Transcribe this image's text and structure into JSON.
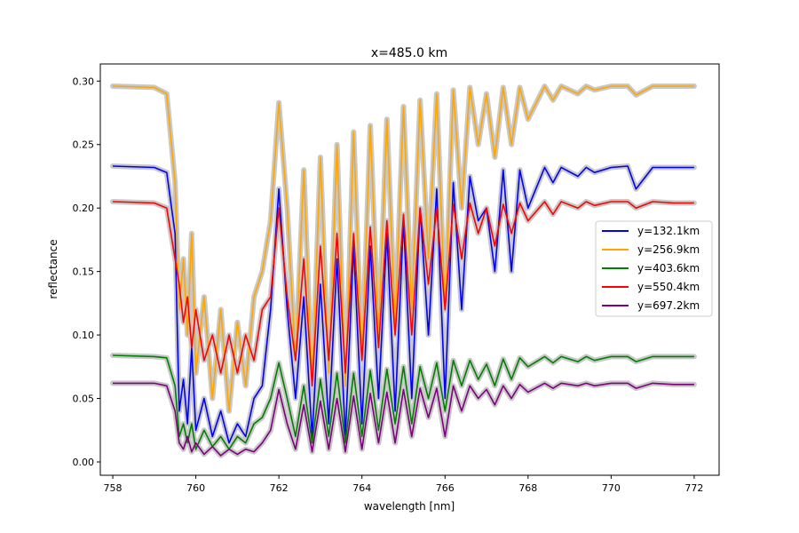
{
  "chart_data": {
    "type": "line",
    "title": "x=485.0 km",
    "xlabel": "wavelength [nm]",
    "ylabel": "reflectance",
    "xlim": [
      757.7,
      772.6
    ],
    "ylim": [
      -0.0105,
      0.3135
    ],
    "xticks": [
      758,
      760,
      762,
      764,
      766,
      768,
      770,
      772
    ],
    "yticks": [
      0.0,
      0.05,
      0.1,
      0.15,
      0.2,
      0.25,
      0.3
    ],
    "ytick_labels": [
      "0.00",
      "0.05",
      "0.10",
      "0.15",
      "0.20",
      "0.25",
      "0.30"
    ],
    "grid": false,
    "legend_position": "center-right",
    "uncertainty_band_color": "#c8c8c8",
    "series": [
      {
        "name": "y=132.1km",
        "color": "#0000ff",
        "x": [
          758.0,
          759.0,
          759.3,
          759.5,
          759.6,
          759.7,
          759.8,
          759.9,
          760.0,
          760.2,
          760.4,
          760.6,
          760.8,
          761.0,
          761.2,
          761.4,
          761.6,
          761.8,
          762.0,
          762.2,
          762.4,
          762.6,
          762.8,
          763.0,
          763.2,
          763.4,
          763.6,
          763.8,
          764.0,
          764.2,
          764.4,
          764.6,
          764.8,
          765.0,
          765.2,
          765.4,
          765.6,
          765.8,
          766.0,
          766.2,
          766.4,
          766.6,
          766.8,
          767.0,
          767.2,
          767.4,
          767.6,
          767.8,
          768.0,
          768.4,
          768.6,
          768.8,
          769.2,
          769.4,
          769.6,
          770.0,
          770.4,
          770.6,
          771.0,
          771.5,
          772.0
        ],
        "y": [
          0.233,
          0.232,
          0.228,
          0.18,
          0.04,
          0.065,
          0.03,
          0.09,
          0.025,
          0.05,
          0.02,
          0.04,
          0.015,
          0.03,
          0.02,
          0.05,
          0.06,
          0.12,
          0.215,
          0.12,
          0.05,
          0.13,
          0.02,
          0.14,
          0.03,
          0.16,
          0.02,
          0.17,
          0.03,
          0.17,
          0.05,
          0.18,
          0.04,
          0.19,
          0.05,
          0.2,
          0.1,
          0.215,
          0.05,
          0.22,
          0.12,
          0.225,
          0.19,
          0.2,
          0.15,
          0.23,
          0.15,
          0.23,
          0.2,
          0.232,
          0.22,
          0.232,
          0.225,
          0.232,
          0.228,
          0.232,
          0.233,
          0.215,
          0.232,
          0.232,
          0.232
        ]
      },
      {
        "name": "y=256.9km",
        "color": "#ffa500",
        "x": [
          758.0,
          759.0,
          759.3,
          759.5,
          759.6,
          759.7,
          759.8,
          759.9,
          760.0,
          760.2,
          760.4,
          760.6,
          760.8,
          761.0,
          761.2,
          761.4,
          761.6,
          761.8,
          762.0,
          762.2,
          762.4,
          762.6,
          762.8,
          763.0,
          763.2,
          763.4,
          763.6,
          763.8,
          764.0,
          764.2,
          764.4,
          764.6,
          764.8,
          765.0,
          765.2,
          765.4,
          765.6,
          765.8,
          766.0,
          766.2,
          766.4,
          766.6,
          766.8,
          767.0,
          767.2,
          767.4,
          767.6,
          767.8,
          768.0,
          768.4,
          768.6,
          768.8,
          769.2,
          769.4,
          769.6,
          770.0,
          770.4,
          770.6,
          771.0,
          771.5,
          772.0
        ],
        "y": [
          0.296,
          0.295,
          0.29,
          0.22,
          0.12,
          0.16,
          0.1,
          0.18,
          0.07,
          0.13,
          0.05,
          0.12,
          0.04,
          0.11,
          0.06,
          0.13,
          0.15,
          0.19,
          0.283,
          0.2,
          0.08,
          0.23,
          0.06,
          0.24,
          0.07,
          0.25,
          0.06,
          0.26,
          0.08,
          0.265,
          0.1,
          0.27,
          0.11,
          0.28,
          0.12,
          0.285,
          0.16,
          0.29,
          0.12,
          0.293,
          0.2,
          0.295,
          0.25,
          0.29,
          0.24,
          0.295,
          0.25,
          0.295,
          0.27,
          0.296,
          0.285,
          0.296,
          0.29,
          0.296,
          0.293,
          0.296,
          0.296,
          0.289,
          0.296,
          0.296,
          0.296
        ]
      },
      {
        "name": "y=403.6km",
        "color": "#008000",
        "x": [
          758.0,
          759.0,
          759.3,
          759.5,
          759.6,
          759.7,
          759.8,
          759.9,
          760.0,
          760.2,
          760.4,
          760.6,
          760.8,
          761.0,
          761.2,
          761.4,
          761.6,
          761.8,
          762.0,
          762.2,
          762.4,
          762.6,
          762.8,
          763.0,
          763.2,
          763.4,
          763.6,
          763.8,
          764.0,
          764.2,
          764.4,
          764.6,
          764.8,
          765.0,
          765.2,
          765.4,
          765.6,
          765.8,
          766.0,
          766.2,
          766.4,
          766.6,
          766.8,
          767.0,
          767.2,
          767.4,
          767.6,
          767.8,
          768.0,
          768.4,
          768.6,
          768.8,
          769.2,
          769.4,
          769.6,
          770.0,
          770.4,
          770.6,
          771.0,
          771.5,
          772.0
        ],
        "y": [
          0.084,
          0.083,
          0.082,
          0.06,
          0.02,
          0.03,
          0.015,
          0.03,
          0.01,
          0.025,
          0.012,
          0.02,
          0.01,
          0.02,
          0.015,
          0.03,
          0.035,
          0.05,
          0.078,
          0.05,
          0.02,
          0.06,
          0.015,
          0.065,
          0.02,
          0.07,
          0.015,
          0.07,
          0.02,
          0.072,
          0.025,
          0.073,
          0.03,
          0.075,
          0.03,
          0.075,
          0.05,
          0.078,
          0.04,
          0.08,
          0.06,
          0.08,
          0.065,
          0.077,
          0.06,
          0.081,
          0.065,
          0.082,
          0.075,
          0.083,
          0.078,
          0.083,
          0.079,
          0.083,
          0.08,
          0.083,
          0.083,
          0.079,
          0.083,
          0.083,
          0.083
        ]
      },
      {
        "name": "y=550.4km",
        "color": "#ff0000",
        "x": [
          758.0,
          759.0,
          759.3,
          759.5,
          759.6,
          759.7,
          759.8,
          759.9,
          760.0,
          760.2,
          760.4,
          760.6,
          760.8,
          761.0,
          761.2,
          761.4,
          761.6,
          761.8,
          762.0,
          762.2,
          762.4,
          762.6,
          762.8,
          763.0,
          763.2,
          763.4,
          763.6,
          763.8,
          764.0,
          764.2,
          764.4,
          764.6,
          764.8,
          765.0,
          765.2,
          765.4,
          765.6,
          765.8,
          766.0,
          766.2,
          766.4,
          766.6,
          766.8,
          767.0,
          767.2,
          767.4,
          767.6,
          767.8,
          768.0,
          768.4,
          768.6,
          768.8,
          769.2,
          769.4,
          769.6,
          770.0,
          770.4,
          770.6,
          771.0,
          771.5,
          772.0
        ],
        "y": [
          0.205,
          0.204,
          0.2,
          0.16,
          0.14,
          0.11,
          0.13,
          0.09,
          0.12,
          0.08,
          0.1,
          0.07,
          0.1,
          0.07,
          0.1,
          0.08,
          0.12,
          0.13,
          0.2,
          0.13,
          0.08,
          0.16,
          0.06,
          0.17,
          0.08,
          0.18,
          0.07,
          0.18,
          0.08,
          0.185,
          0.09,
          0.19,
          0.1,
          0.195,
          0.1,
          0.2,
          0.14,
          0.2,
          0.12,
          0.203,
          0.16,
          0.204,
          0.18,
          0.2,
          0.17,
          0.203,
          0.18,
          0.204,
          0.19,
          0.205,
          0.195,
          0.205,
          0.2,
          0.205,
          0.202,
          0.205,
          0.205,
          0.2,
          0.205,
          0.204,
          0.204
        ]
      },
      {
        "name": "y=697.2km",
        "color": "#800080",
        "x": [
          758.0,
          759.0,
          759.3,
          759.5,
          759.6,
          759.7,
          759.8,
          759.9,
          760.0,
          760.2,
          760.4,
          760.6,
          760.8,
          761.0,
          761.2,
          761.4,
          761.6,
          761.8,
          762.0,
          762.2,
          762.4,
          762.6,
          762.8,
          763.0,
          763.2,
          763.4,
          763.6,
          763.8,
          764.0,
          764.2,
          764.4,
          764.6,
          764.8,
          765.0,
          765.2,
          765.4,
          765.6,
          765.8,
          766.0,
          766.2,
          766.4,
          766.6,
          766.8,
          767.0,
          767.2,
          767.4,
          767.6,
          767.8,
          768.0,
          768.4,
          768.6,
          768.8,
          769.2,
          769.4,
          769.6,
          770.0,
          770.4,
          770.6,
          771.0,
          771.5,
          772.0
        ],
        "y": [
          0.062,
          0.062,
          0.06,
          0.04,
          0.015,
          0.01,
          0.02,
          0.008,
          0.015,
          0.006,
          0.012,
          0.005,
          0.01,
          0.006,
          0.01,
          0.008,
          0.015,
          0.025,
          0.057,
          0.03,
          0.01,
          0.045,
          0.008,
          0.048,
          0.01,
          0.05,
          0.008,
          0.052,
          0.01,
          0.054,
          0.015,
          0.055,
          0.015,
          0.057,
          0.02,
          0.058,
          0.035,
          0.058,
          0.02,
          0.06,
          0.04,
          0.06,
          0.05,
          0.057,
          0.045,
          0.06,
          0.05,
          0.061,
          0.055,
          0.062,
          0.058,
          0.062,
          0.06,
          0.062,
          0.06,
          0.062,
          0.062,
          0.058,
          0.062,
          0.061,
          0.061
        ]
      }
    ]
  }
}
